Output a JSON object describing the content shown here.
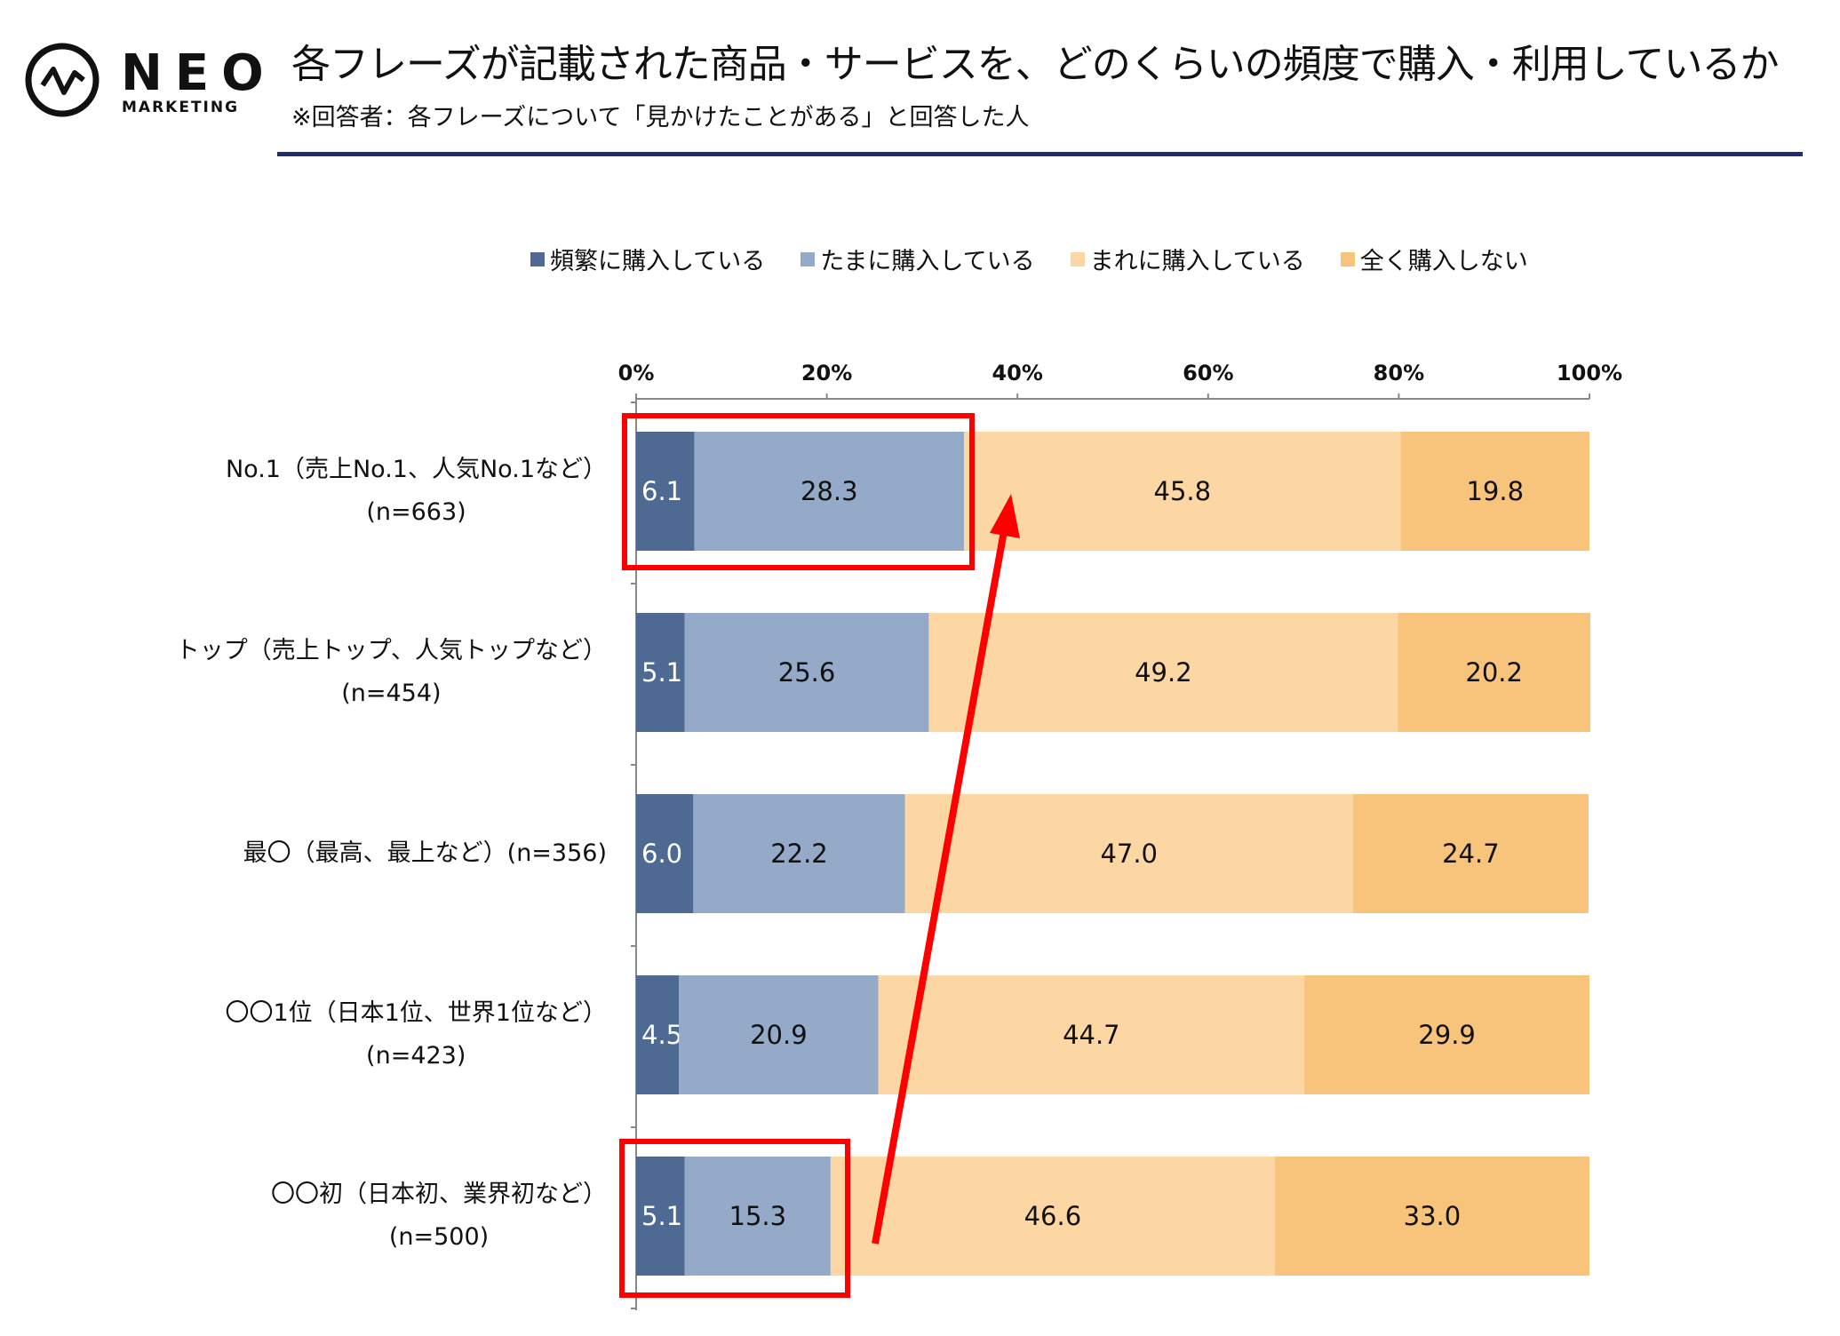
{
  "logo": {
    "name": "NEO",
    "sub": "MARKETING"
  },
  "header": {
    "title": "各フレーズが記載された商品・サービスを、どのくらいの頻度で購入・利用しているか",
    "subtitle": "※回答者：各フレーズについて「見かけたことがある」と回答した人"
  },
  "colors": {
    "rule": "#1F2C6E",
    "highlight": "#FF0000"
  },
  "chart_data": {
    "type": "bar",
    "orientation": "horizontal-stacked-100",
    "categories": [
      {
        "label": "No.1（売上No.1、人気No.1など）",
        "n": "(n=663)"
      },
      {
        "label": "トップ（売上トップ、人気トップなど）",
        "n": "(n=454)"
      },
      {
        "label": "最〇（最高、最上など）",
        "n": "(n=356)"
      },
      {
        "label": "〇〇1位（日本1位、世界1位など）",
        "n": "(n=423)"
      },
      {
        "label": "〇〇初（日本初、業界初など）",
        "n": "(n=500)"
      }
    ],
    "series": [
      {
        "name": "頻繁に購入している",
        "color": "#4E6A93",
        "label_color": "#ffffff",
        "values": [
          6.1,
          5.1,
          6.0,
          4.5,
          5.1
        ]
      },
      {
        "name": "たまに購入している",
        "color": "#94AAC8",
        "label_color": "#111111",
        "values": [
          28.3,
          25.6,
          22.2,
          20.9,
          15.3
        ]
      },
      {
        "name": "まれに購入している",
        "color": "#FCD7A4",
        "label_color": "#111111",
        "values": [
          45.8,
          49.2,
          47.0,
          44.7,
          46.6
        ]
      },
      {
        "name": "全く購入しない",
        "color": "#F8C37A",
        "label_color": "#111111",
        "values": [
          19.8,
          20.2,
          24.7,
          29.9,
          33.0
        ]
      }
    ],
    "xticks": [
      "0%",
      "20%",
      "40%",
      "60%",
      "80%",
      "100%"
    ],
    "xlim": [
      0,
      100
    ],
    "legend": "top",
    "annotations": {
      "highlighted_rows": [
        0,
        4
      ],
      "arrow": "from row 5 to row 1 (increase)"
    }
  }
}
